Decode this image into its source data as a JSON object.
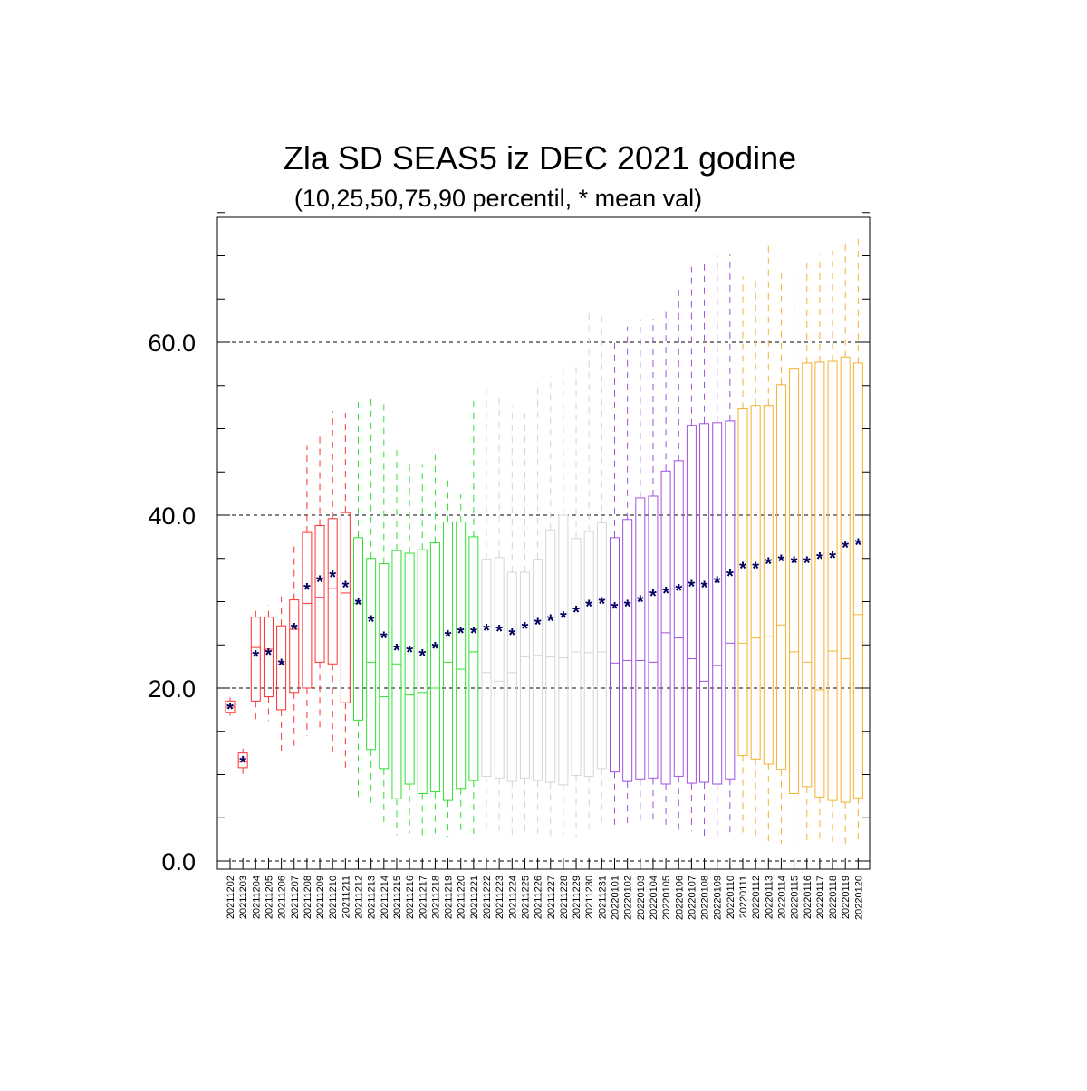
{
  "chart_data": {
    "type": "box",
    "title": "Zla SD SEAS5 iz DEC 2021 godine",
    "subtitle": "(10,25,50,75,90 percentil, * mean val)",
    "xlabel": "",
    "ylabel": "",
    "ylim": [
      0,
      75
    ],
    "y_ticks": [
      0,
      20,
      40,
      60
    ],
    "y_tick_labels": [
      "0.0",
      "20.0",
      "40.0",
      "60.0"
    ],
    "y_minor_step": 5,
    "grid": "dashed horizontal lines at major ticks",
    "colors": {
      "2021-12-02..2021-12-11": "#ff3030",
      "2021-12-12..2021-12-21": "#30e030",
      "2021-12-22..2021-12-31": "#d4d4d4",
      "2022-01-01..2022-01-10": "#a050e0",
      "2022-01-11..2022-01-20": "#f5b030",
      "mean_marker": "#000060",
      "grid": "#000000"
    },
    "categories": [
      "20211202",
      "20211203",
      "20211204",
      "20211205",
      "20211206",
      "20211207",
      "20211208",
      "20211209",
      "20211210",
      "20211211",
      "20211212",
      "20211213",
      "20211214",
      "20211215",
      "20211216",
      "20211217",
      "20211218",
      "20211219",
      "20211220",
      "20211221",
      "20211222",
      "20211223",
      "20211224",
      "20211225",
      "20211226",
      "20211227",
      "20211228",
      "20211229",
      "20211230",
      "20211231",
      "20220101",
      "20220102",
      "20220103",
      "20220104",
      "20220105",
      "20220106",
      "20220107",
      "20220108",
      "20220109",
      "20220110",
      "20220111",
      "20220112",
      "20220113",
      "20220114",
      "20220115",
      "20220116",
      "20220117",
      "20220118",
      "20220119",
      "20220120"
    ],
    "p10": [
      16.8,
      10.0,
      16.0,
      16.2,
      12.5,
      13.0,
      14.5,
      15.2,
      12.5,
      10.8,
      7.2,
      6.5,
      4.0,
      3.0,
      3.2,
      3.0,
      3.2,
      2.8,
      3.0,
      3.0,
      3.2,
      2.8,
      2.8,
      2.8,
      3.0,
      2.8,
      2.8,
      2.8,
      3.2,
      4.0,
      4.2,
      4.2,
      4.5,
      4.8,
      4.2,
      3.5,
      3.5,
      2.8,
      2.8,
      2.8,
      2.8,
      2.5,
      2.2,
      2.0,
      2.0,
      2.2,
      2.2,
      2.0,
      2.0,
      2.2
    ],
    "p25": [
      17.2,
      10.8,
      18.5,
      19.0,
      17.5,
      19.5,
      20.0,
      23.0,
      22.8,
      18.3,
      16.3,
      12.9,
      10.7,
      7.2,
      8.9,
      7.8,
      8.0,
      7.0,
      8.4,
      9.3,
      9.8,
      9.6,
      9.2,
      9.6,
      9.3,
      9.1,
      8.8,
      9.9,
      9.8,
      10.7,
      10.3,
      9.2,
      9.5,
      9.6,
      8.9,
      9.8,
      9.0,
      9.1,
      8.9,
      9.5,
      12.2,
      11.8,
      11.2,
      10.6,
      7.8,
      8.6,
      7.4,
      7.0,
      6.8,
      7.3
    ],
    "p50": [
      17.8,
      11.5,
      24.7,
      24.5,
      22.7,
      26.8,
      29.8,
      30.5,
      31.5,
      31.0,
      29.8,
      23.0,
      19.0,
      22.8,
      19.2,
      19.5,
      20.0,
      23.0,
      22.2,
      24.2,
      21.8,
      20.8,
      21.8,
      23.6,
      23.8,
      23.6,
      23.5,
      24.2,
      24.1,
      24.2,
      22.9,
      23.2,
      23.2,
      23.0,
      26.4,
      25.8,
      23.4,
      20.8,
      22.6,
      25.2,
      25.2,
      25.8,
      26.0,
      27.3,
      24.2,
      23.0,
      19.8,
      24.3,
      23.4,
      28.5
    ],
    "p75": [
      18.5,
      12.5,
      28.2,
      28.2,
      27.2,
      30.2,
      38.0,
      38.8,
      39.6,
      40.3,
      37.4,
      35.0,
      34.4,
      35.9,
      35.6,
      36.0,
      36.8,
      39.2,
      39.2,
      37.5,
      34.9,
      35.1,
      33.4,
      33.4,
      34.9,
      38.3,
      40.0,
      37.3,
      38.1,
      39.1,
      37.4,
      39.5,
      42.0,
      42.2,
      45.1,
      46.3,
      50.4,
      50.6,
      50.7,
      50.9,
      52.3,
      52.7,
      52.7,
      55.1,
      56.9,
      57.6,
      57.7,
      57.8,
      58.3,
      57.6
    ],
    "p90": [
      18.9,
      13.0,
      29.5,
      29.6,
      30.6,
      37.0,
      48.0,
      49.2,
      52.0,
      51.8,
      53.6,
      53.6,
      52.9,
      47.6,
      46.4,
      45.8,
      47.4,
      44.6,
      42.4,
      53.3,
      55.1,
      54.0,
      52.7,
      51.8,
      55.4,
      56.1,
      56.9,
      57.5,
      63.4,
      63.0,
      60.1,
      61.8,
      62.7,
      62.7,
      63.5,
      66.6,
      68.7,
      69.0,
      70.1,
      70.2,
      67.6,
      67.2,
      71.4,
      68.0,
      67.8,
      69.7,
      70.0,
      70.6,
      71.8,
      72.6
    ],
    "mean": [
      17.8,
      11.6,
      23.9,
      24.1,
      22.9,
      27.0,
      31.6,
      32.5,
      33.1,
      31.9,
      29.9,
      27.9,
      26.0,
      24.6,
      24.4,
      24.0,
      24.8,
      26.2,
      26.6,
      26.6,
      26.9,
      26.8,
      26.4,
      27.1,
      27.6,
      28.0,
      28.4,
      29.0,
      29.7,
      30.0,
      29.4,
      29.7,
      30.2,
      30.9,
      31.2,
      31.5,
      32.0,
      31.9,
      32.4,
      33.2,
      34.1,
      34.1,
      34.6,
      34.9,
      34.7,
      34.7,
      35.2,
      35.3,
      36.5,
      36.8
    ]
  }
}
